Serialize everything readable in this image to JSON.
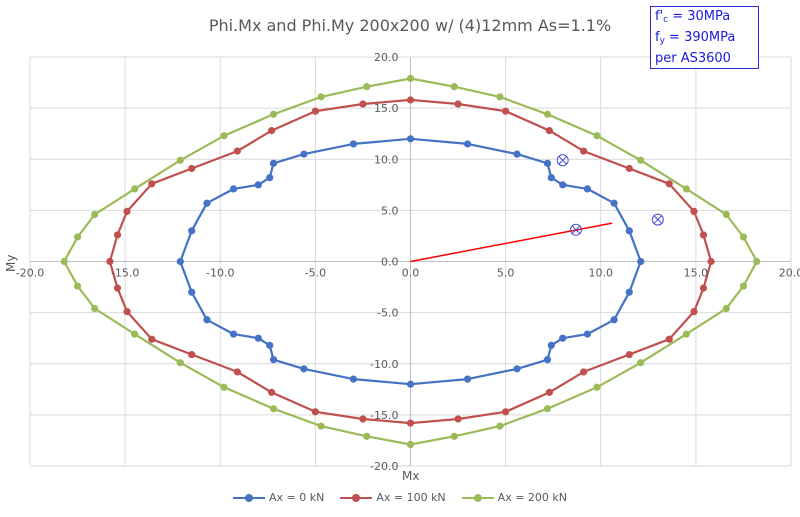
{
  "chart_data": {
    "type": "line",
    "title": "Phi.Mx and Phi.My 200x200 w/ (4)12mm As=1.1%",
    "xlabel": "Mx",
    "ylabel": "My",
    "xlim": [
      -20,
      20
    ],
    "ylim": [
      -20,
      20
    ],
    "x_ticks": [
      "-20.0",
      "-15.0",
      "-10.0",
      "-5.0",
      "0.0",
      "5.0",
      "10.0",
      "15.0",
      "20.0"
    ],
    "y_ticks": [
      "20.0",
      "15.0",
      "10.0",
      "5.0",
      "0.0",
      "-5.0",
      "-10.0",
      "-15.0",
      "-20.0"
    ],
    "grid": true,
    "legend_position": "bottom",
    "annotation_box": [
      "f'c = 30MPa",
      "fy = 390MPa",
      "per AS3600"
    ],
    "series": [
      {
        "name": "Ax = 0 kN",
        "color": "#4472c4",
        "points": [
          [
            12.1,
            0
          ],
          [
            11.5,
            3.0
          ],
          [
            10.7,
            5.7
          ],
          [
            9.3,
            7.1
          ],
          [
            8.0,
            7.5
          ],
          [
            7.4,
            8.2
          ],
          [
            7.2,
            9.6
          ],
          [
            5.6,
            10.5
          ],
          [
            3.0,
            11.5
          ],
          [
            0,
            12.0
          ],
          [
            -3.0,
            11.5
          ],
          [
            -5.6,
            10.5
          ],
          [
            -7.2,
            9.6
          ],
          [
            -7.4,
            8.2
          ],
          [
            -8.0,
            7.5
          ],
          [
            -9.3,
            7.1
          ],
          [
            -10.7,
            5.7
          ],
          [
            -11.5,
            3.0
          ],
          [
            -12.1,
            0
          ],
          [
            -11.5,
            -3.0
          ],
          [
            -10.7,
            -5.7
          ],
          [
            -9.3,
            -7.1
          ],
          [
            -8.0,
            -7.5
          ],
          [
            -7.4,
            -8.2
          ],
          [
            -7.2,
            -9.6
          ],
          [
            -5.6,
            -10.5
          ],
          [
            -3.0,
            -11.5
          ],
          [
            0,
            -12.0
          ],
          [
            3.0,
            -11.5
          ],
          [
            5.6,
            -10.5
          ],
          [
            7.2,
            -9.6
          ],
          [
            7.4,
            -8.2
          ],
          [
            8.0,
            -7.5
          ],
          [
            9.3,
            -7.1
          ],
          [
            10.7,
            -5.7
          ],
          [
            11.5,
            -3.0
          ],
          [
            12.1,
            0
          ]
        ]
      },
      {
        "name": "Ax = 100 kN",
        "color": "#c0504d",
        "points": [
          [
            15.8,
            0
          ],
          [
            15.4,
            2.6
          ],
          [
            14.9,
            4.9
          ],
          [
            13.6,
            7.6
          ],
          [
            11.5,
            9.1
          ],
          [
            9.1,
            10.8
          ],
          [
            7.3,
            12.8
          ],
          [
            5.0,
            14.7
          ],
          [
            2.5,
            15.4
          ],
          [
            0,
            15.8
          ],
          [
            -2.5,
            15.4
          ],
          [
            -5.0,
            14.7
          ],
          [
            -7.3,
            12.8
          ],
          [
            -9.1,
            10.8
          ],
          [
            -11.5,
            9.1
          ],
          [
            -13.6,
            7.6
          ],
          [
            -14.9,
            4.9
          ],
          [
            -15.4,
            2.6
          ],
          [
            -15.8,
            0
          ],
          [
            -15.4,
            -2.6
          ],
          [
            -14.9,
            -4.9
          ],
          [
            -13.6,
            -7.6
          ],
          [
            -11.5,
            -9.1
          ],
          [
            -9.1,
            -10.8
          ],
          [
            -7.3,
            -12.8
          ],
          [
            -5.0,
            -14.7
          ],
          [
            -2.5,
            -15.4
          ],
          [
            0,
            -15.8
          ],
          [
            2.5,
            -15.4
          ],
          [
            5.0,
            -14.7
          ],
          [
            7.3,
            -12.8
          ],
          [
            9.1,
            -10.8
          ],
          [
            11.5,
            -9.1
          ],
          [
            13.6,
            -7.6
          ],
          [
            14.9,
            -4.9
          ],
          [
            15.4,
            -2.6
          ],
          [
            15.8,
            0
          ]
        ]
      },
      {
        "name": "Ax = 200 kN",
        "color": "#9bbb59",
        "points": [
          [
            18.2,
            0
          ],
          [
            17.5,
            2.4
          ],
          [
            16.6,
            4.6
          ],
          [
            14.5,
            7.1
          ],
          [
            12.1,
            9.9
          ],
          [
            9.8,
            12.3
          ],
          [
            7.2,
            14.4
          ],
          [
            4.7,
            16.1
          ],
          [
            2.3,
            17.1
          ],
          [
            0,
            17.9
          ],
          [
            -2.3,
            17.1
          ],
          [
            -4.7,
            16.1
          ],
          [
            -7.2,
            14.4
          ],
          [
            -9.8,
            12.3
          ],
          [
            -12.1,
            9.9
          ],
          [
            -14.5,
            7.1
          ],
          [
            -16.6,
            4.6
          ],
          [
            -17.5,
            2.4
          ],
          [
            -18.2,
            0
          ],
          [
            -17.5,
            -2.4
          ],
          [
            -16.6,
            -4.6
          ],
          [
            -14.5,
            -7.1
          ],
          [
            -12.1,
            -9.9
          ],
          [
            -9.8,
            -12.3
          ],
          [
            -7.2,
            -14.4
          ],
          [
            -4.7,
            -16.1
          ],
          [
            -2.3,
            -17.1
          ],
          [
            0,
            -17.9
          ],
          [
            2.3,
            -17.1
          ],
          [
            4.7,
            -16.1
          ],
          [
            7.2,
            -14.4
          ],
          [
            9.8,
            -12.3
          ],
          [
            12.1,
            -9.9
          ],
          [
            14.5,
            -7.1
          ],
          [
            16.6,
            -4.6
          ],
          [
            17.5,
            -2.4
          ],
          [
            18.2,
            0
          ]
        ]
      }
    ],
    "load_line": {
      "color": "#ff0000",
      "from": [
        0,
        0
      ],
      "to": [
        10.6,
        3.75
      ]
    },
    "marked_points": {
      "color": "#4b4bd6",
      "points": [
        [
          8.0,
          9.9
        ],
        [
          8.7,
          3.1
        ],
        [
          13.0,
          4.1
        ]
      ]
    }
  }
}
